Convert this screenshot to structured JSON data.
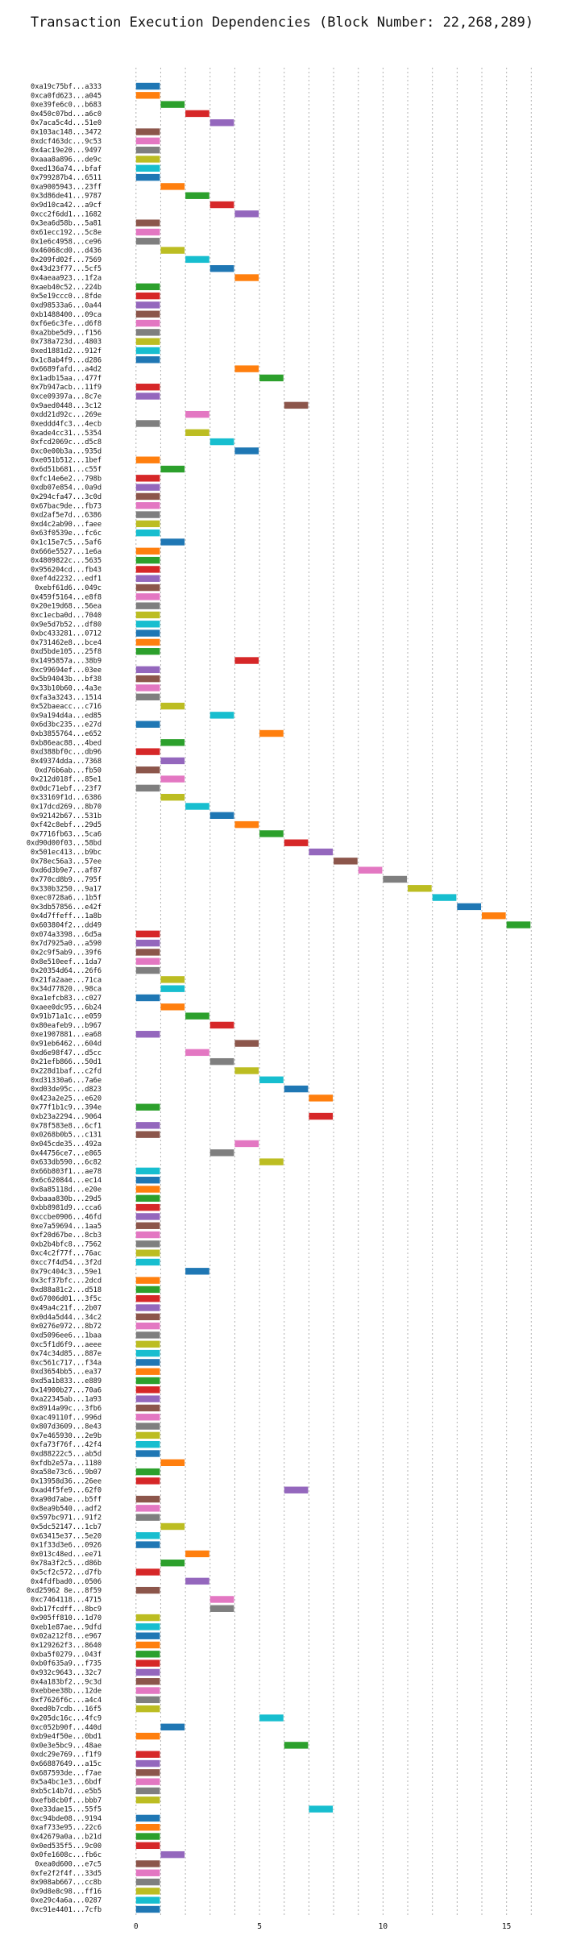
{
  "chart_data": {
    "type": "gantt",
    "title": "Transaction Execution Dependencies (Block Number: 22,268,289)",
    "xlabel": "",
    "ylabel": "",
    "xlim": [
      -1.2,
      17
    ],
    "xticks": [
      0,
      5,
      10,
      15
    ],
    "grid": "vertical dotted",
    "bar_duration": 1,
    "palette": [
      "#1f77b4",
      "#ff7f0e",
      "#2ca02c",
      "#d62728",
      "#9467bd",
      "#8c564b",
      "#e377c2",
      "#7f7f7f",
      "#bcbd22",
      "#17becf"
    ],
    "transactions": [
      {
        "id": "0xa19c75bf...a333",
        "start": 0
      },
      {
        "id": "0xca0fd623...a045",
        "start": 0
      },
      {
        "id": "0xe39fe6c0...b683",
        "start": 1
      },
      {
        "id": "0x450c07bd...a6c0",
        "start": 2
      },
      {
        "id": "0x7aca5c4d...51e0",
        "start": 3
      },
      {
        "id": "0x103ac148...3472",
        "start": 0
      },
      {
        "id": "0xdcf463dc...9c53",
        "start": 0
      },
      {
        "id": "0x4ac19e20...9497",
        "start": 0
      },
      {
        "id": "0xaaa8a896...de9c",
        "start": 0
      },
      {
        "id": "0xed136a74...bfaf",
        "start": 0
      },
      {
        "id": "0x799287b4...6511",
        "start": 0
      },
      {
        "id": "0xa9005943...23ff",
        "start": 1
      },
      {
        "id": "0x3d86de41...9787",
        "start": 2
      },
      {
        "id": "0x9d10ca42...a9cf",
        "start": 3
      },
      {
        "id": "0xcc2f6dd1...1682",
        "start": 4
      },
      {
        "id": "0x3ea6d58b...5a81",
        "start": 0
      },
      {
        "id": "0x61ecc192...5c8e",
        "start": 0
      },
      {
        "id": "0x1e6c4958...ce96",
        "start": 0
      },
      {
        "id": "0x46068cd0...d436",
        "start": 1
      },
      {
        "id": "0x209fd02f...7569",
        "start": 2
      },
      {
        "id": "0x43d23f77...5cf5",
        "start": 3
      },
      {
        "id": "0x4aeaa923...1f2a",
        "start": 4
      },
      {
        "id": "0xaeb40c52...224b",
        "start": 0
      },
      {
        "id": "0x5e19ccc0...8fde",
        "start": 0
      },
      {
        "id": "0xd98533a6...0a44",
        "start": 0
      },
      {
        "id": "0xb1488400...09ca",
        "start": 0
      },
      {
        "id": "0xf6e6c3fe...d6f8",
        "start": 0
      },
      {
        "id": "0xa2bbe5d9...f156",
        "start": 0
      },
      {
        "id": "0x738a723d...4803",
        "start": 0
      },
      {
        "id": "0xed1881d2...912f",
        "start": 0
      },
      {
        "id": "0x1c8ab4f9...d286",
        "start": 0
      },
      {
        "id": "0x6689fafd...a4d2",
        "start": 4
      },
      {
        "id": "0x1adb15aa...477f",
        "start": 5
      },
      {
        "id": "0x7b947acb...11f9",
        "start": 0
      },
      {
        "id": "0xce09397a...8c7e",
        "start": 0
      },
      {
        "id": "0x9aed0448...3c12",
        "start": 6
      },
      {
        "id": "0xdd21d92c...269e",
        "start": 2
      },
      {
        "id": "0xeddd4fc3...4ecb",
        "start": 0
      },
      {
        "id": "0xade4cc31...5354",
        "start": 2
      },
      {
        "id": "0xfcd2069c...d5c8",
        "start": 3
      },
      {
        "id": "0xc0e00b3a...935d",
        "start": 4
      },
      {
        "id": "0xe051b512...1bef",
        "start": 0
      },
      {
        "id": "0x6d51b681...c55f",
        "start": 1
      },
      {
        "id": "0xfc14e6e2...798b",
        "start": 0
      },
      {
        "id": "0xdb07e854...0a9d",
        "start": 0
      },
      {
        "id": "0x294cfa47...3c0d",
        "start": 0
      },
      {
        "id": "0x67bac9de...fb73",
        "start": 0
      },
      {
        "id": "0xd2af5e7d...6386",
        "start": 0
      },
      {
        "id": "0xd4c2ab90...faee",
        "start": 0
      },
      {
        "id": "0x63f0539e...fc6c",
        "start": 0
      },
      {
        "id": "0x1c15e7c5...5af6",
        "start": 1
      },
      {
        "id": "0x666e5527...1e6a",
        "start": 0
      },
      {
        "id": "0x4809822c...5635",
        "start": 0
      },
      {
        "id": "0x956204cd...fb43",
        "start": 0
      },
      {
        "id": "0xef4d2232...edf1",
        "start": 0
      },
      {
        "id": "0xebf61d6...049c",
        "start": 0
      },
      {
        "id": "0x459f5164...e8f8",
        "start": 0
      },
      {
        "id": "0x20e19d68...56ea",
        "start": 0
      },
      {
        "id": "0xc1ecba0d...7040",
        "start": 0
      },
      {
        "id": "0x9e5d7b52...df80",
        "start": 0
      },
      {
        "id": "0xbc433281...0712",
        "start": 0
      },
      {
        "id": "0x731462e8...bce4",
        "start": 0
      },
      {
        "id": "0xd5bde105...25f8",
        "start": 0
      },
      {
        "id": "0x1495857a...38b9",
        "start": 4
      },
      {
        "id": "0xc99694ef...03ee",
        "start": 0
      },
      {
        "id": "0x5b94043b...bf38",
        "start": 0
      },
      {
        "id": "0x33b10b60...4a3e",
        "start": 0
      },
      {
        "id": "0xfa3a3243...1514",
        "start": 0
      },
      {
        "id": "0x52baeacc...c716",
        "start": 1
      },
      {
        "id": "0x9a194d4a...ed85",
        "start": 3
      },
      {
        "id": "0x6d3bc235...e27d",
        "start": 0
      },
      {
        "id": "0xb3855764...e652",
        "start": 5
      },
      {
        "id": "0xb86eac88...4bed",
        "start": 1
      },
      {
        "id": "0xd388bf0c...db96",
        "start": 0
      },
      {
        "id": "0x49374dda...7368",
        "start": 1
      },
      {
        "id": "0xd76b6ab...fb50",
        "start": 0
      },
      {
        "id": "0x212d018f...85e1",
        "start": 1
      },
      {
        "id": "0x0dc71ebf...23f7",
        "start": 0
      },
      {
        "id": "0x33169f1d...6386",
        "start": 1
      },
      {
        "id": "0x17dcd269...8b70",
        "start": 2
      },
      {
        "id": "0x92142b67...531b",
        "start": 3
      },
      {
        "id": "0xf42c8ebf...29d5",
        "start": 4
      },
      {
        "id": "0x7716fb63...5ca6",
        "start": 5
      },
      {
        "id": "0xd90d00f03...58bd",
        "start": 6
      },
      {
        "id": "0x501ec413...b9bc",
        "start": 7
      },
      {
        "id": "0x78ec56a3...57ee",
        "start": 8
      },
      {
        "id": "0xd6d3b9e7...af87",
        "start": 9
      },
      {
        "id": "0x770cd8b9...795f",
        "start": 10
      },
      {
        "id": "0x330b3250...9a17",
        "start": 11
      },
      {
        "id": "0xec0728a6...1b5f",
        "start": 12
      },
      {
        "id": "0x3db57856...e42f",
        "start": 13
      },
      {
        "id": "0x4d7ffeff...1a8b",
        "start": 14
      },
      {
        "id": "0x603804f2...dd49",
        "start": 15
      },
      {
        "id": "0x074a3398...6d5a",
        "start": 0
      },
      {
        "id": "0x7d7925a0...a590",
        "start": 0
      },
      {
        "id": "0x2c9f5ab9...39f6",
        "start": 0
      },
      {
        "id": "0x8e510eef...1da7",
        "start": 0
      },
      {
        "id": "0x20354d64...26f6",
        "start": 0
      },
      {
        "id": "0x21fa2aae...71ca",
        "start": 1
      },
      {
        "id": "0x34d77820...98ca",
        "start": 1
      },
      {
        "id": "0xa1efcb83...c027",
        "start": 0
      },
      {
        "id": "0xaee0dc95...6b24",
        "start": 1
      },
      {
        "id": "0x91b71a1c...e059",
        "start": 2
      },
      {
        "id": "0x80eafeb9...b967",
        "start": 3
      },
      {
        "id": "0xe1907881...ea68",
        "start": 0
      },
      {
        "id": "0x91eb6462...604d",
        "start": 4
      },
      {
        "id": "0xd6e98f47...d5cc",
        "start": 2
      },
      {
        "id": "0x21efb866...50d1",
        "start": 3
      },
      {
        "id": "0x228d1baf...c2fd",
        "start": 4
      },
      {
        "id": "0xd31330a6...7a6e",
        "start": 5
      },
      {
        "id": "0xd03de95c...d823",
        "start": 6
      },
      {
        "id": "0x423a2e25...e620",
        "start": 7
      },
      {
        "id": "0x77f1b1c9...394e",
        "start": 0
      },
      {
        "id": "0xb23a2294...9064",
        "start": 7
      },
      {
        "id": "0x78f583e8...6cf1",
        "start": 0
      },
      {
        "id": "0x0268b0b5...c131",
        "start": 0
      },
      {
        "id": "0x045cde35...492a",
        "start": 4
      },
      {
        "id": "0x44756ce7...e865",
        "start": 3
      },
      {
        "id": "0x633db590...6c82",
        "start": 5
      },
      {
        "id": "0x66b803f1...ae78",
        "start": 0
      },
      {
        "id": "0x6c620844...ec14",
        "start": 0
      },
      {
        "id": "0x8a85118d...e20e",
        "start": 0
      },
      {
        "id": "0xbaaa830b...29d5",
        "start": 0
      },
      {
        "id": "0xbb8981d9...cca6",
        "start": 0
      },
      {
        "id": "0xccbe0906...46fd",
        "start": 0
      },
      {
        "id": "0xe7a59694...1aa5",
        "start": 0
      },
      {
        "id": "0xf20d67be...8cb3",
        "start": 0
      },
      {
        "id": "0xb2b4bfc8...7562",
        "start": 0
      },
      {
        "id": "0xc4c2f77f...76ac",
        "start": 0
      },
      {
        "id": "0xcc7f4d54...3f2d",
        "start": 0
      },
      {
        "id": "0x79c404c3...59e1",
        "start": 2
      },
      {
        "id": "0x3cf37bfc...2dcd",
        "start": 0
      },
      {
        "id": "0xd88a81c2...d518",
        "start": 0
      },
      {
        "id": "0x67006d01...3f5c",
        "start": 0
      },
      {
        "id": "0x49a4c21f...2b07",
        "start": 0
      },
      {
        "id": "0x0d4a5d44...34c2",
        "start": 0
      },
      {
        "id": "0x0276e972...8b72",
        "start": 0
      },
      {
        "id": "0xd5096ee6...1baa",
        "start": 0
      },
      {
        "id": "0xc5f1d6f9...aeee",
        "start": 0
      },
      {
        "id": "0x74c34d85...887e",
        "start": 0
      },
      {
        "id": "0xc561c717...f34a",
        "start": 0
      },
      {
        "id": "0xd3654bb5...ea37",
        "start": 0
      },
      {
        "id": "0xd5a1b833...e889",
        "start": 0
      },
      {
        "id": "0x14900b27...70a6",
        "start": 0
      },
      {
        "id": "0xa22345ab...1a93",
        "start": 0
      },
      {
        "id": "0x8914a99c...3fb6",
        "start": 0
      },
      {
        "id": "0xac49110f...996d",
        "start": 0
      },
      {
        "id": "0x807d3609...8e43",
        "start": 0
      },
      {
        "id": "0x7e465930...2e9b",
        "start": 0
      },
      {
        "id": "0xfa73f76f...42f4",
        "start": 0
      },
      {
        "id": "0xd88222c5...ab5d",
        "start": 0
      },
      {
        "id": "0xfdb2e57a...1180",
        "start": 1
      },
      {
        "id": "0xa58e73c6...9b07",
        "start": 0
      },
      {
        "id": "0x13958d36...26ee",
        "start": 0
      },
      {
        "id": "0xad4f5fe9...62f0",
        "start": 6
      },
      {
        "id": "0xa90d7abe...b5ff",
        "start": 0
      },
      {
        "id": "0x8ea9b540...adf2",
        "start": 0
      },
      {
        "id": "0x597bc971...91f2",
        "start": 0
      },
      {
        "id": "0x5dc52147...1cb7",
        "start": 1
      },
      {
        "id": "0x63415e37...5e20",
        "start": 0
      },
      {
        "id": "0x1f33d3e6...0926",
        "start": 0
      },
      {
        "id": "0x013c48ed...ee71",
        "start": 2
      },
      {
        "id": "0x78a3f2c5...d86b",
        "start": 1
      },
      {
        "id": "0x5cf2c572...d7fb",
        "start": 0
      },
      {
        "id": "0x4fdfbad0...0506",
        "start": 2
      },
      {
        "id": "0xd25962 8e...8f59",
        "start": 0
      },
      {
        "id": "0xc7464118...4715",
        "start": 3
      },
      {
        "id": "0xb17fcdff...8bc9",
        "start": 3
      },
      {
        "id": "0x905ff810...1d70",
        "start": 0
      },
      {
        "id": "0xeb1e87ae...9dfd",
        "start": 0
      },
      {
        "id": "0x02a212f8...e967",
        "start": 0
      },
      {
        "id": "0x129262f3...8640",
        "start": 0
      },
      {
        "id": "0xba5f0279...043f",
        "start": 0
      },
      {
        "id": "0xb0f635a9...f735",
        "start": 0
      },
      {
        "id": "0x932c9643...32c7",
        "start": 0
      },
      {
        "id": "0x4a183bf2...9c3d",
        "start": 0
      },
      {
        "id": "0xebbee38b...12de",
        "start": 0
      },
      {
        "id": "0xf7626f6c...a4c4",
        "start": 0
      },
      {
        "id": "0xed0b7cdb...16f5",
        "start": 0
      },
      {
        "id": "0x205dc16c...4fc9",
        "start": 5
      },
      {
        "id": "0xc052b90f...440d",
        "start": 1
      },
      {
        "id": "0xb9e4f50e...0bd1",
        "start": 0
      },
      {
        "id": "0x0e3e5bc9...48ae",
        "start": 6
      },
      {
        "id": "0xdc29e769...f1f9",
        "start": 0
      },
      {
        "id": "0x66887649...a15c",
        "start": 0
      },
      {
        "id": "0x687593de...f7ae",
        "start": 0
      },
      {
        "id": "0x5a4bc1e3...6bdf",
        "start": 0
      },
      {
        "id": "0xb5c14b7d...e5b5",
        "start": 0
      },
      {
        "id": "0xefb8cb0f...bbb7",
        "start": 0
      },
      {
        "id": "0xe33dae15...55f5",
        "start": 7
      },
      {
        "id": "0xc94bde08...9194",
        "start": 0
      },
      {
        "id": "0xaf733e95...22c6",
        "start": 0
      },
      {
        "id": "0x42679a0a...b21d",
        "start": 0
      },
      {
        "id": "0x0ed535f5...9c00",
        "start": 0
      },
      {
        "id": "0x0fe1608c...fb6c",
        "start": 1
      },
      {
        "id": "0xea0d600...e7c5",
        "start": 0
      },
      {
        "id": "0xfe2f2f4f...33d5",
        "start": 0
      },
      {
        "id": "0x908ab667...cc8b",
        "start": 0
      },
      {
        "id": "0x9d8e8c98...ff16",
        "start": 0
      },
      {
        "id": "0xe29c4a6a...0287",
        "start": 0
      },
      {
        "id": "0xc91e4401...7cfb",
        "start": 0
      }
    ]
  }
}
